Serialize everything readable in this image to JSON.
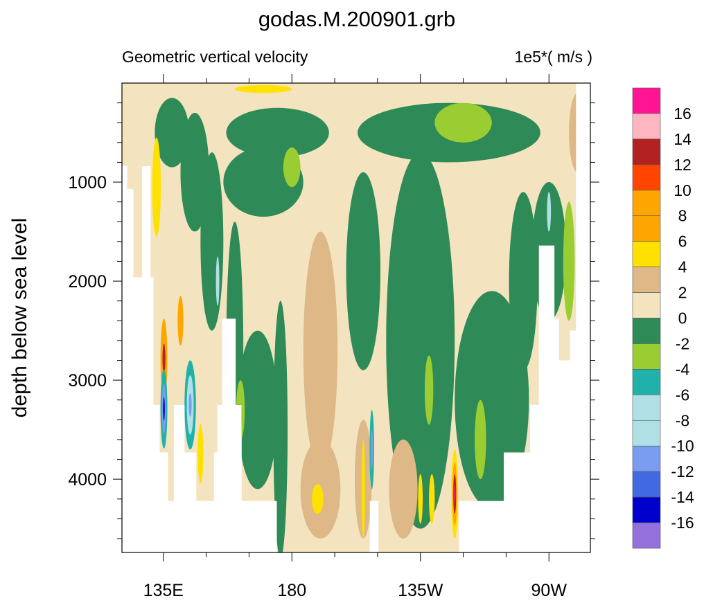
{
  "chart_data": {
    "type": "heatmap",
    "subtype": "filled-contour",
    "title": "godas.M.200901.grb",
    "left_subtitle": "Geometric vertical velocity",
    "right_subtitle": "1e5*( m/s )",
    "ylabel": "depth below sea level",
    "xlabel": "",
    "xlim_deg_east": [
      120.5,
      284.5
    ],
    "ylim_depth": [
      0,
      4740
    ],
    "y_reversed": true,
    "x_ticks": [
      {
        "lon": 135,
        "label": "135E"
      },
      {
        "lon": 180,
        "label": "180"
      },
      {
        "lon": 225,
        "label": "135W"
      },
      {
        "lon": 270,
        "label": "90W"
      }
    ],
    "x_minor_step": 15,
    "y_ticks": [
      {
        "depth": 1000,
        "label": "1000"
      },
      {
        "depth": 2000,
        "label": "2000"
      },
      {
        "depth": 3000,
        "label": "3000"
      },
      {
        "depth": 4000,
        "label": "4000"
      }
    ],
    "y_minor_step": 200,
    "colorbar": {
      "labels": [
        "16",
        "14",
        "12",
        "10",
        "8",
        "6",
        "4",
        "2",
        "0",
        "-2",
        "-4",
        "-6",
        "-8",
        "-10",
        "-12",
        "-14",
        "-16"
      ],
      "colors": [
        "#FF1493",
        "#FFB6C1",
        "#B22222",
        "#FF4500",
        "#FFA500",
        "#FFA500",
        "#FFE100",
        "#DEB887",
        "#F3E4BF",
        "#2E8B57",
        "#9ACD32",
        "#20B2AA",
        "#B0E0E6",
        "#B0E0E6",
        "#7A9CEE",
        "#4169E1",
        "#0000CD",
        "#9370DB"
      ]
    },
    "ocean_bottom": [
      [
        120.5,
        122.4,
        840
      ],
      [
        122.4,
        124.6,
        1070
      ],
      [
        124.6,
        127.5,
        1960
      ],
      [
        127.5,
        130.6,
        840
      ],
      [
        130.6,
        131.6,
        1960
      ],
      [
        131.6,
        133.8,
        3250
      ],
      [
        133.8,
        136.7,
        3730
      ],
      [
        136.7,
        138.6,
        4220
      ],
      [
        138.6,
        142.5,
        3250
      ],
      [
        142.5,
        146.6,
        3730
      ],
      [
        146.6,
        152.6,
        4220
      ],
      [
        152.6,
        153.8,
        3730
      ],
      [
        153.8,
        155.5,
        3250
      ],
      [
        155.5,
        160.4,
        2380
      ],
      [
        160.4,
        162.5,
        3250
      ],
      [
        162.5,
        174.8,
        4220
      ],
      [
        174.8,
        207.2,
        4740
      ],
      [
        207.2,
        210.4,
        4220
      ],
      [
        210.4,
        238.4,
        4740
      ],
      [
        238.4,
        254.1,
        4220
      ],
      [
        254.1,
        263.3,
        3730
      ],
      [
        263.3,
        266.4,
        3250
      ],
      [
        266.4,
        272,
        1640
      ],
      [
        272,
        273.6,
        2380
      ],
      [
        273.6,
        277.3,
        2800
      ],
      [
        277.3,
        279.4,
        2500
      ]
    ],
    "background_value": 1,
    "features": [
      {
        "lon": 138,
        "depth": 500,
        "dlon": 6,
        "ddepth": 350,
        "value": -1
      },
      {
        "lon": 146,
        "depth": 900,
        "dlon": 5,
        "ddepth": 600,
        "value": -1
      },
      {
        "lon": 152,
        "depth": 1600,
        "dlon": 4,
        "ddepth": 900,
        "value": -1
      },
      {
        "lon": 160,
        "depth": 2700,
        "dlon": 3,
        "ddepth": 1300,
        "value": -1
      },
      {
        "lon": 170,
        "depth": 1000,
        "dlon": 14,
        "ddepth": 350,
        "value": -1
      },
      {
        "lon": 175,
        "depth": 500,
        "dlon": 18,
        "ddepth": 250,
        "value": -1
      },
      {
        "lon": 235,
        "depth": 500,
        "dlon": 32,
        "ddepth": 300,
        "value": -1
      },
      {
        "lon": 205,
        "depth": 1900,
        "dlon": 6,
        "ddepth": 1000,
        "value": -1
      },
      {
        "lon": 225,
        "depth": 2600,
        "dlon": 12,
        "ddepth": 1900,
        "value": -1
      },
      {
        "lon": 250,
        "depth": 3200,
        "dlon": 13,
        "ddepth": 1100,
        "value": -1
      },
      {
        "lon": 168,
        "depth": 3300,
        "dlon": 7,
        "ddepth": 800,
        "value": -1
      },
      {
        "lon": 176,
        "depth": 3500,
        "dlon": 2.5,
        "ddepth": 1300,
        "value": -1
      },
      {
        "lon": 270,
        "depth": 1700,
        "dlon": 6,
        "ddepth": 700,
        "value": -1
      },
      {
        "lon": 261,
        "depth": 2000,
        "dlon": 5,
        "ddepth": 900,
        "value": -1
      },
      {
        "lon": 240,
        "depth": 400,
        "dlon": 10,
        "ddepth": 200,
        "value": -3
      },
      {
        "lon": 277,
        "depth": 1800,
        "dlon": 2,
        "ddepth": 600,
        "value": -3
      },
      {
        "lon": 180,
        "depth": 850,
        "dlon": 3,
        "ddepth": 200,
        "value": -3
      },
      {
        "lon": 228,
        "depth": 3100,
        "dlon": 1.5,
        "ddepth": 350,
        "value": -3
      },
      {
        "lon": 246,
        "depth": 3600,
        "dlon": 2,
        "ddepth": 400,
        "value": -3
      },
      {
        "lon": 162,
        "depth": 3300,
        "dlon": 1.5,
        "ddepth": 300,
        "value": -3
      },
      {
        "lon": 190,
        "depth": 2700,
        "dlon": 6,
        "ddepth": 1200,
        "value": 3
      },
      {
        "lon": 190,
        "depth": 4100,
        "dlon": 7,
        "ddepth": 500,
        "value": 3
      },
      {
        "lon": 280,
        "depth": 500,
        "dlon": 3,
        "ddepth": 400,
        "value": 3
      },
      {
        "lon": 219,
        "depth": 4100,
        "dlon": 5,
        "ddepth": 500,
        "value": 3
      },
      {
        "lon": 205,
        "depth": 4000,
        "dlon": 3,
        "ddepth": 600,
        "value": 3
      },
      {
        "lon": 170,
        "depth": 60,
        "dlon": 10,
        "ddepth": 40,
        "value": 5
      },
      {
        "lon": 189,
        "depth": 4200,
        "dlon": 2,
        "ddepth": 150,
        "value": 5
      },
      {
        "lon": 132.6,
        "depth": 1050,
        "dlon": 1.5,
        "ddepth": 500,
        "value": 5
      },
      {
        "lon": 148,
        "depth": 3740,
        "dlon": 1,
        "ddepth": 300,
        "value": 5
      },
      {
        "lon": 229,
        "depth": 4200,
        "dlon": 1,
        "ddepth": 250,
        "value": 5
      },
      {
        "lon": 225,
        "depth": 4200,
        "dlon": 0.8,
        "ddepth": 250,
        "value": 5
      },
      {
        "lon": 205,
        "depth": 4100,
        "dlon": 0.6,
        "ddepth": 500,
        "value": 5
      },
      {
        "lon": 135.2,
        "depth": 2780,
        "dlon": 1.2,
        "ddepth": 400,
        "value": 7
      },
      {
        "lon": 135.2,
        "depth": 2780,
        "dlon": 0.5,
        "ddepth": 150,
        "value": 13
      },
      {
        "lon": 141,
        "depth": 2400,
        "dlon": 1,
        "ddepth": 250,
        "value": 7
      },
      {
        "lon": 237,
        "depth": 4150,
        "dlon": 1.2,
        "ddepth": 450,
        "value": 5
      },
      {
        "lon": 237,
        "depth": 4150,
        "dlon": 0.8,
        "ddepth": 320,
        "value": 7
      },
      {
        "lon": 237,
        "depth": 4150,
        "dlon": 0.5,
        "ddepth": 200,
        "value": 13
      },
      {
        "lon": 237,
        "depth": 4150,
        "dlon": 0.25,
        "ddepth": 90,
        "value": 17
      },
      {
        "lon": 135.2,
        "depth": 3290,
        "dlon": 1.2,
        "ddepth": 400,
        "value": -5
      },
      {
        "lon": 135.2,
        "depth": 3290,
        "dlon": 0.7,
        "ddepth": 250,
        "value": -11
      },
      {
        "lon": 135.2,
        "depth": 3290,
        "dlon": 0.3,
        "ddepth": 120,
        "value": -15
      },
      {
        "lon": 144.4,
        "depth": 3250,
        "dlon": 2,
        "ddepth": 450,
        "value": -5
      },
      {
        "lon": 144.4,
        "depth": 3250,
        "dlon": 1.2,
        "ddepth": 300,
        "value": -7
      },
      {
        "lon": 144.4,
        "depth": 3250,
        "dlon": 0.5,
        "ddepth": 120,
        "value": -11
      },
      {
        "lon": 208,
        "depth": 3700,
        "dlon": 0.8,
        "ddepth": 400,
        "value": -5
      },
      {
        "lon": 208,
        "depth": 3700,
        "dlon": 0.4,
        "ddepth": 200,
        "value": -11
      },
      {
        "lon": 154,
        "depth": 2000,
        "dlon": 0.6,
        "ddepth": 250,
        "value": -7
      },
      {
        "lon": 270,
        "depth": 1300,
        "dlon": 0.7,
        "ddepth": 200,
        "value": -7
      }
    ]
  }
}
